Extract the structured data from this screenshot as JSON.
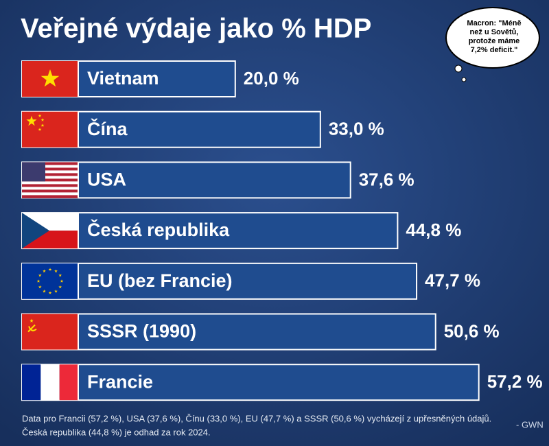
{
  "chart_data": {
    "type": "bar",
    "orientation": "horizontal",
    "title": "Veřejné výdaje jako % HDP",
    "categories": [
      "Vietnam",
      "Čína",
      "USA",
      "Česká republika",
      "EU (bez Francie)",
      "SSSR (1990)",
      "Francie"
    ],
    "values": [
      20.0,
      33.0,
      37.6,
      44.8,
      47.7,
      50.6,
      57.2
    ],
    "value_labels": [
      "20,0 %",
      "33,0 %",
      "37,6 %",
      "44,8 %",
      "47,7 %",
      "50,6 %",
      "57,2 %"
    ],
    "color": "#1f4c8f",
    "annotation": [
      "Macron: \"Méně",
      "než u Sovětů,",
      "protože máme",
      "7,2% deficit.\""
    ],
    "footnote": [
      "Data pro Francii (57,2 %), USA (37,6 %), Čínu (33,0 %), EU (47,7 %) a SSSR (50,6 %) vycházejí z upřesněných údajů.",
      "Česká republika (44,8 %) je odhad za rok 2024."
    ],
    "signature": "- GWN"
  }
}
